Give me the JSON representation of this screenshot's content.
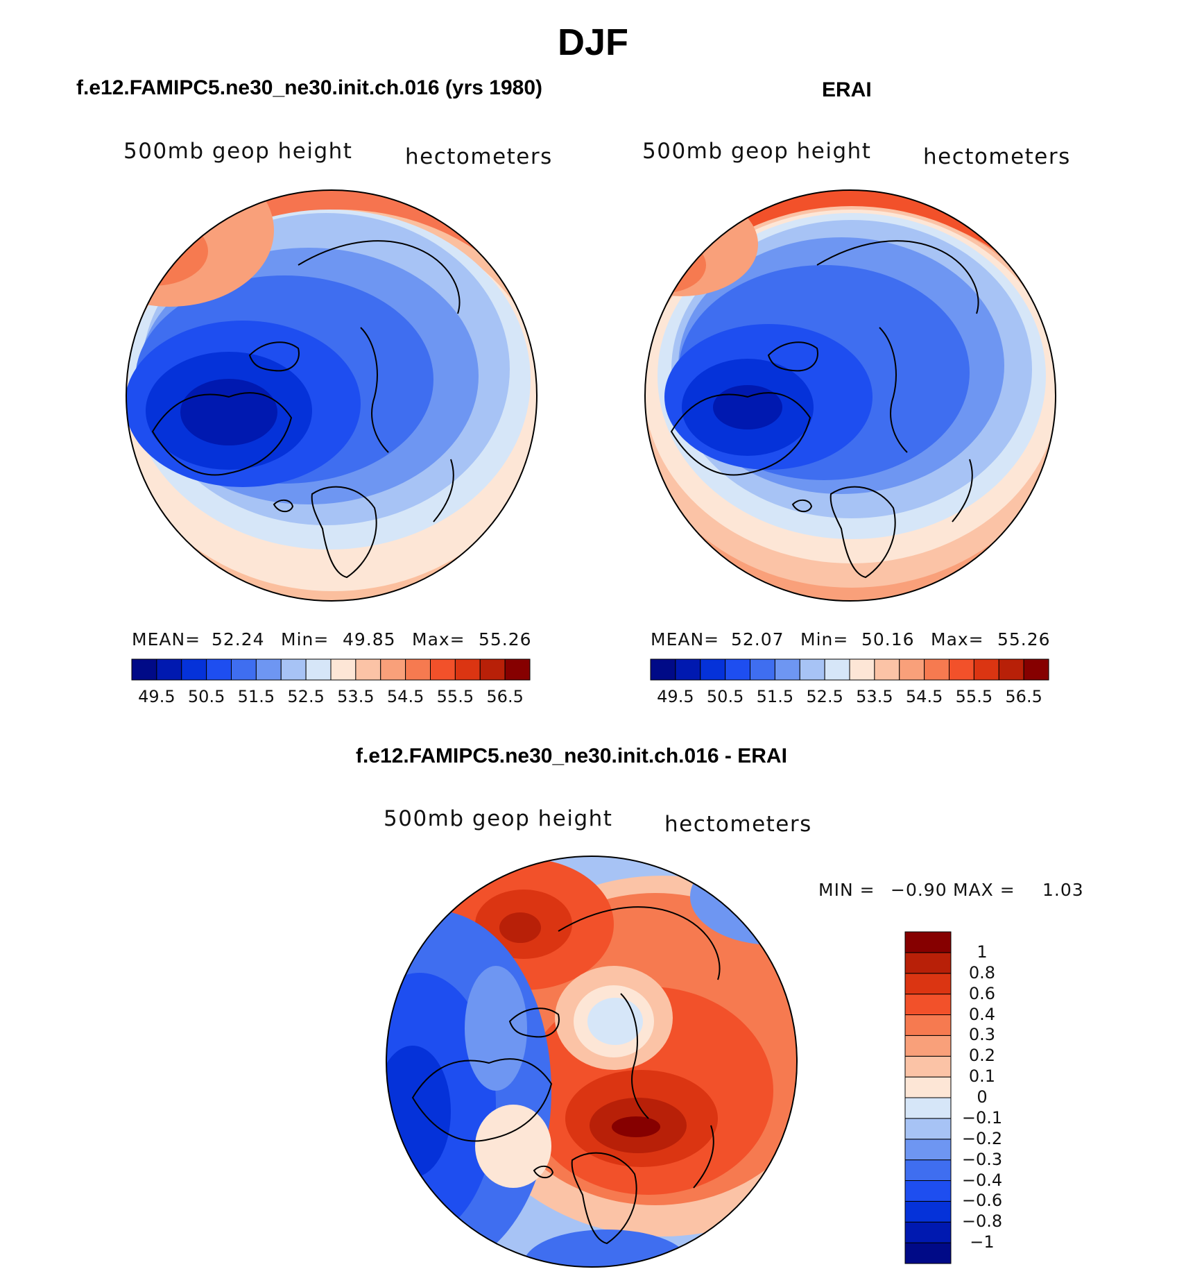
{
  "title": "DJF",
  "panels": {
    "model": {
      "heading": "f.e12.FAMIPC5.ne30_ne30.init.ch.016 (yrs 1980)",
      "variable": "500mb  geop  height",
      "units": "hectometers",
      "stats": {
        "mean_label": "MEAN=",
        "mean": "52.24",
        "min_label": "Min=",
        "min": "49.85",
        "max_label": "Max=",
        "max": "55.26"
      }
    },
    "obs": {
      "heading": "ERAI",
      "variable": "500mb  geop  height",
      "units": "hectometers",
      "stats": {
        "mean_label": "MEAN=",
        "mean": "52.07",
        "min_label": "Min=",
        "min": "50.16",
        "max_label": "Max=",
        "max": "55.26"
      }
    },
    "diff": {
      "heading": "f.e12.FAMIPC5.ne30_ne30.init.ch.016 - ERAI",
      "variable": "500mb  geop  height",
      "units": "hectometers",
      "stats": {
        "min_label": "MIN =",
        "min": "−0.90",
        "max_label": "MAX =",
        "max": "1.03"
      }
    }
  },
  "colorbars": {
    "height": {
      "colors": [
        "#000a87",
        "#0019b0",
        "#0532d9",
        "#1e4ef0",
        "#3f6ef0",
        "#6e96f2",
        "#a7c3f5",
        "#d6e6f8",
        "#fde6d6",
        "#fbc3a6",
        "#f9a07a",
        "#f67a50",
        "#f2512a",
        "#db3512",
        "#b82008",
        "#860000"
      ],
      "tick_labels": [
        "49.5",
        "50.5",
        "51.5",
        "52.5",
        "53.5",
        "54.5",
        "55.5",
        "56.5"
      ]
    },
    "difference": {
      "colors": [
        "#000a87",
        "#0019b0",
        "#0532d9",
        "#1e4ef0",
        "#3f6ef0",
        "#6e96f2",
        "#a7c3f5",
        "#d6e6f8",
        "#fde6d6",
        "#fbc3a6",
        "#f9a07a",
        "#f67a50",
        "#f2512a",
        "#db3512",
        "#b82008",
        "#860000"
      ],
      "tick_labels": [
        "1",
        "0.8",
        "0.6",
        "0.4",
        "0.3",
        "0.2",
        "0.1",
        "0",
        "−0.1",
        "−0.2",
        "−0.3",
        "−0.4",
        "−0.6",
        "−0.8",
        "−1"
      ]
    }
  }
}
